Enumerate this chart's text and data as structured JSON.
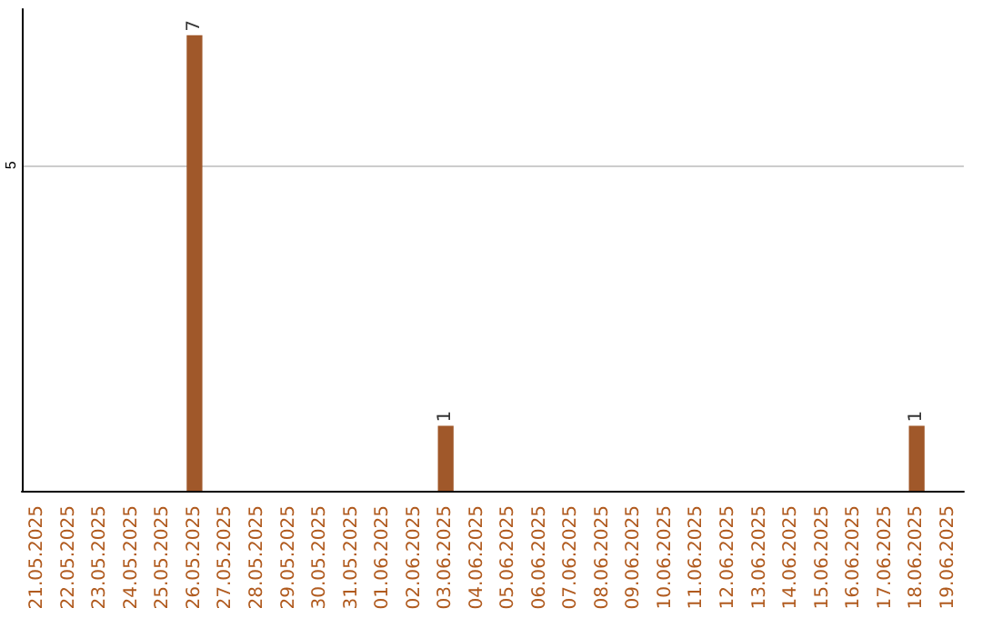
{
  "chart_data": {
    "type": "bar",
    "categories": [
      "21.05.2025",
      "22.05.2025",
      "23.05.2025",
      "24.05.2025",
      "25.05.2025",
      "26.05.2025",
      "27.05.2025",
      "28.05.2025",
      "29.05.2025",
      "30.05.2025",
      "31.05.2025",
      "01.06.2025",
      "02.06.2025",
      "03.06.2025",
      "04.06.2025",
      "05.06.2025",
      "06.06.2025",
      "07.06.2025",
      "08.06.2025",
      "09.06.2025",
      "10.06.2025",
      "11.06.2025",
      "12.06.2025",
      "13.06.2025",
      "14.06.2025",
      "15.06.2025",
      "16.06.2025",
      "17.06.2025",
      "18.06.2025",
      "19.06.2025"
    ],
    "values": [
      0,
      0,
      0,
      0,
      0,
      7,
      0,
      0,
      0,
      0,
      0,
      0,
      0,
      1,
      0,
      0,
      0,
      0,
      0,
      0,
      0,
      0,
      0,
      0,
      0,
      0,
      0,
      0,
      1,
      0
    ],
    "value_labels": [
      null,
      null,
      null,
      null,
      null,
      "7",
      null,
      null,
      null,
      null,
      null,
      null,
      null,
      "1",
      null,
      null,
      null,
      null,
      null,
      null,
      null,
      null,
      null,
      null,
      null,
      null,
      null,
      null,
      "1",
      null
    ],
    "color": "#a0582a",
    "ylim": [
      0,
      7.4
    ],
    "yticks": [
      5
    ],
    "grid": "y"
  }
}
